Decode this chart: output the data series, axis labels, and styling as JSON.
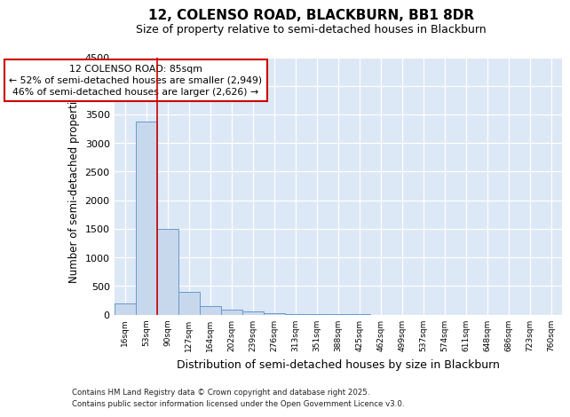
{
  "title1": "12, COLENSO ROAD, BLACKBURN, BB1 8DR",
  "title2": "Size of property relative to semi-detached houses in Blackburn",
  "xlabel": "Distribution of semi-detached houses by size in Blackburn",
  "ylabel": "Number of semi-detached properties",
  "bin_labels": [
    "16sqm",
    "53sqm",
    "90sqm",
    "127sqm",
    "164sqm",
    "202sqm",
    "239sqm",
    "276sqm",
    "313sqm",
    "351sqm",
    "388sqm",
    "425sqm",
    "462sqm",
    "499sqm",
    "537sqm",
    "574sqm",
    "611sqm",
    "648sqm",
    "686sqm",
    "723sqm",
    "760sqm"
  ],
  "bar_heights": [
    200,
    3380,
    1500,
    390,
    150,
    80,
    50,
    30,
    15,
    5,
    3,
    1,
    0,
    0,
    0,
    0,
    0,
    0,
    0,
    0,
    0
  ],
  "bar_color": "#c8d8ec",
  "bar_edge_color": "#6699cc",
  "red_line_x": 1.5,
  "red_line_color": "#cc0000",
  "annotation_line1": "12 COLENSO ROAD: 85sqm",
  "annotation_line2": "← 52% of semi-detached houses are smaller (2,949)",
  "annotation_line3": "46% of semi-detached houses are larger (2,626) →",
  "annotation_box_facecolor": "#ffffff",
  "annotation_box_edgecolor": "#cc0000",
  "ylim": [
    0,
    4500
  ],
  "yticks": [
    0,
    500,
    1000,
    1500,
    2000,
    2500,
    3000,
    3500,
    4000,
    4500
  ],
  "footnote1": "Contains HM Land Registry data © Crown copyright and database right 2025.",
  "footnote2": "Contains public sector information licensed under the Open Government Licence v3.0.",
  "fig_bg_color": "#ffffff",
  "plot_bg_color": "#dce8f5"
}
